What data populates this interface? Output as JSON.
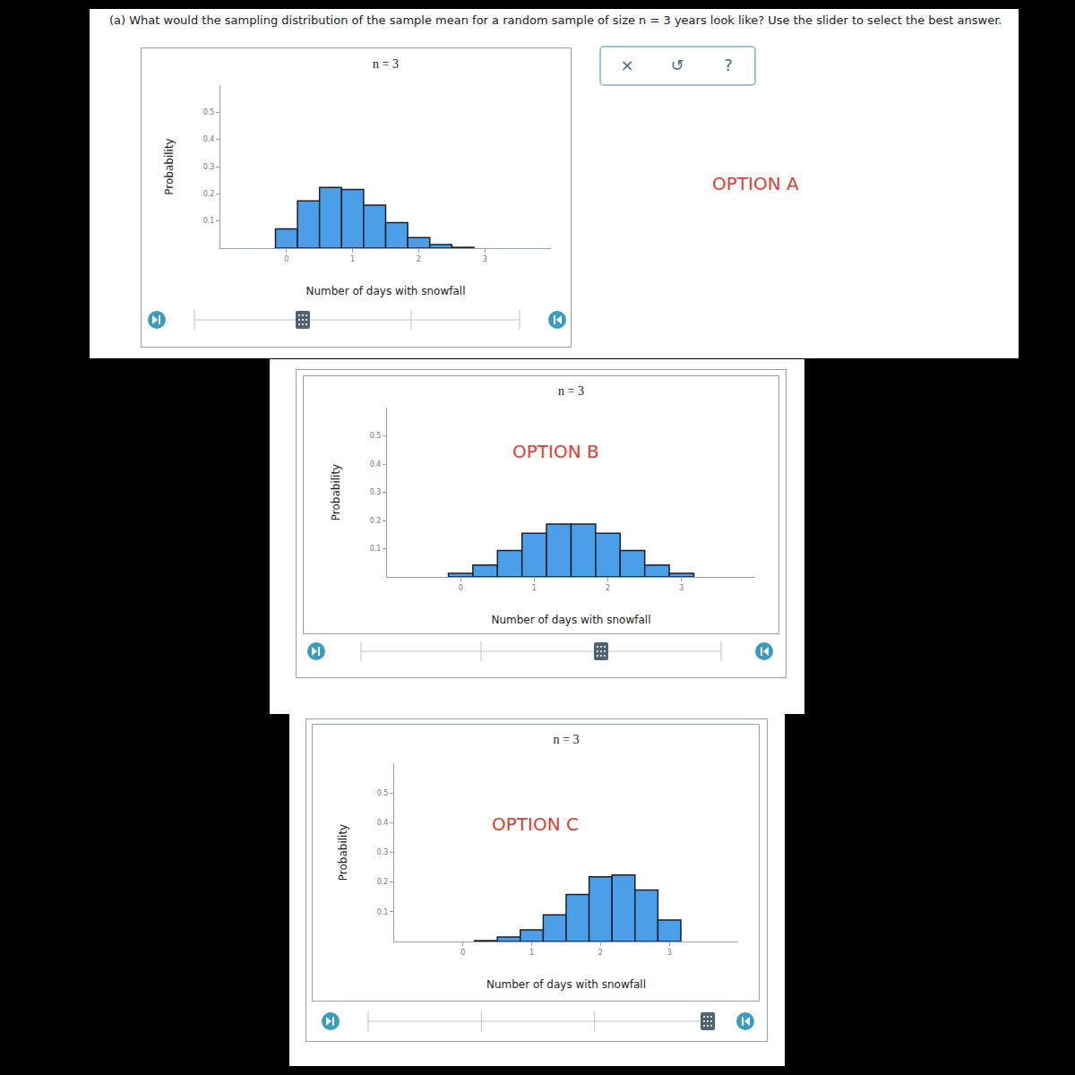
{
  "question": "(a) What would the sampling distribution of the sample mean for a random sample of size n = 3 years look like? Use the slider to select the best answer.",
  "toolbar": [
    "×",
    "↺",
    "?"
  ],
  "chart_data": [
    {
      "type": "histogram",
      "annotation": "OPTION A",
      "title": "n = 3",
      "x_label": "Number of days with snowfall",
      "y_label": "Probability",
      "bins": [
        -0.1667,
        0.1667,
        0.5,
        0.8333,
        1.1667,
        1.5,
        1.8333,
        2.1667,
        2.5,
        2.8333
      ],
      "values": [
        0.071,
        0.174,
        0.223,
        0.216,
        0.158,
        0.094,
        0.039,
        0.013,
        0.003
      ],
      "color": "#4a9fe8",
      "xlim": [
        -1,
        4
      ],
      "ylim": [
        0,
        0.6
      ],
      "xticks": [
        0,
        1,
        2,
        3
      ],
      "yticks": [
        0.1,
        0.2,
        0.3,
        0.4,
        0.5
      ],
      "grid": false
    },
    {
      "type": "histogram",
      "annotation": "OPTION B",
      "title": "n = 3",
      "x_label": "Number of days with snowfall",
      "y_label": "Probability",
      "bins": [
        -0.1667,
        0.1667,
        0.5,
        0.8333,
        1.1667,
        1.5,
        1.8333,
        2.1667,
        2.5,
        2.8333,
        3.1667
      ],
      "values": [
        0.013,
        0.042,
        0.094,
        0.155,
        0.187,
        0.187,
        0.155,
        0.094,
        0.042,
        0.013
      ],
      "color": "#4a9fe8",
      "xlim": [
        -1,
        4
      ],
      "ylim": [
        0,
        0.6
      ],
      "xticks": [
        0,
        1,
        2,
        3
      ],
      "yticks": [
        0.1,
        0.2,
        0.3,
        0.4,
        0.5
      ],
      "grid": false
    },
    {
      "type": "histogram",
      "annotation": "OPTION C",
      "title": "n = 3",
      "x_label": "Number of days with snowfall",
      "y_label": "Probability",
      "bins": [
        0.1667,
        0.5,
        0.8333,
        1.1667,
        1.5,
        1.8333,
        2.1667,
        2.5,
        2.8333,
        3.1667
      ],
      "values": [
        0.003,
        0.015,
        0.039,
        0.09,
        0.158,
        0.218,
        0.224,
        0.173,
        0.072
      ],
      "color": "#4a9fe8",
      "xlim": [
        -1,
        4
      ],
      "ylim": [
        0,
        0.6
      ],
      "xticks": [
        0,
        1,
        2,
        3
      ],
      "yticks": [
        0.1,
        0.2,
        0.3,
        0.4,
        0.5
      ],
      "grid": false
    }
  ]
}
